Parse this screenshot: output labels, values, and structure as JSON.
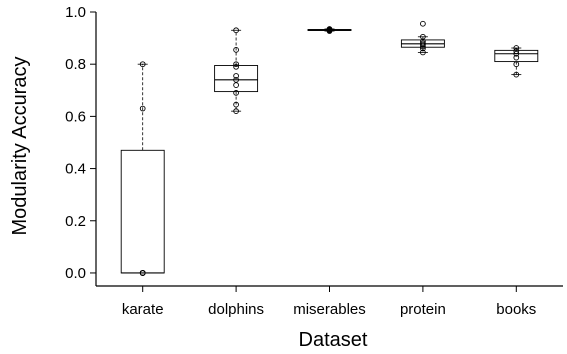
{
  "chart_data": {
    "type": "box",
    "xlabel": "Dataset",
    "ylabel": "Modularity Accuracy",
    "ylim": [
      -0.05,
      1.0
    ],
    "yticks": [
      "0.0",
      "0.2",
      "0.4",
      "0.6",
      "0.8",
      "1.0"
    ],
    "grid": false,
    "categories": [
      "karate",
      "dolphins",
      "miserables",
      "protein",
      "books"
    ],
    "boxes": [
      {
        "q1": 0.0,
        "median": 0.0,
        "q3": 0.47,
        "whisker_low": 0.0,
        "whisker_high": 0.8,
        "points": [
          0.0,
          0.0,
          0.0,
          0.0,
          0.0,
          0.0,
          0.63,
          0.8
        ]
      },
      {
        "q1": 0.695,
        "median": 0.74,
        "q3": 0.795,
        "whisker_low": 0.62,
        "whisker_high": 0.93,
        "points": [
          0.62,
          0.645,
          0.69,
          0.72,
          0.74,
          0.755,
          0.79,
          0.8,
          0.855,
          0.93
        ]
      },
      {
        "q1": 0.929,
        "median": 0.931,
        "q3": 0.933,
        "whisker_low": 0.927,
        "whisker_high": 0.935,
        "points": [
          0.927,
          0.929,
          0.931,
          0.933,
          0.935
        ]
      },
      {
        "q1": 0.865,
        "median": 0.878,
        "q3": 0.893,
        "whisker_low": 0.845,
        "whisker_high": 0.905,
        "points": [
          0.845,
          0.86,
          0.868,
          0.875,
          0.88,
          0.887,
          0.905,
          0.955
        ]
      },
      {
        "q1": 0.81,
        "median": 0.84,
        "q3": 0.853,
        "whisker_low": 0.76,
        "whisker_high": 0.862,
        "points": [
          0.76,
          0.8,
          0.825,
          0.84,
          0.85,
          0.862
        ]
      }
    ]
  }
}
